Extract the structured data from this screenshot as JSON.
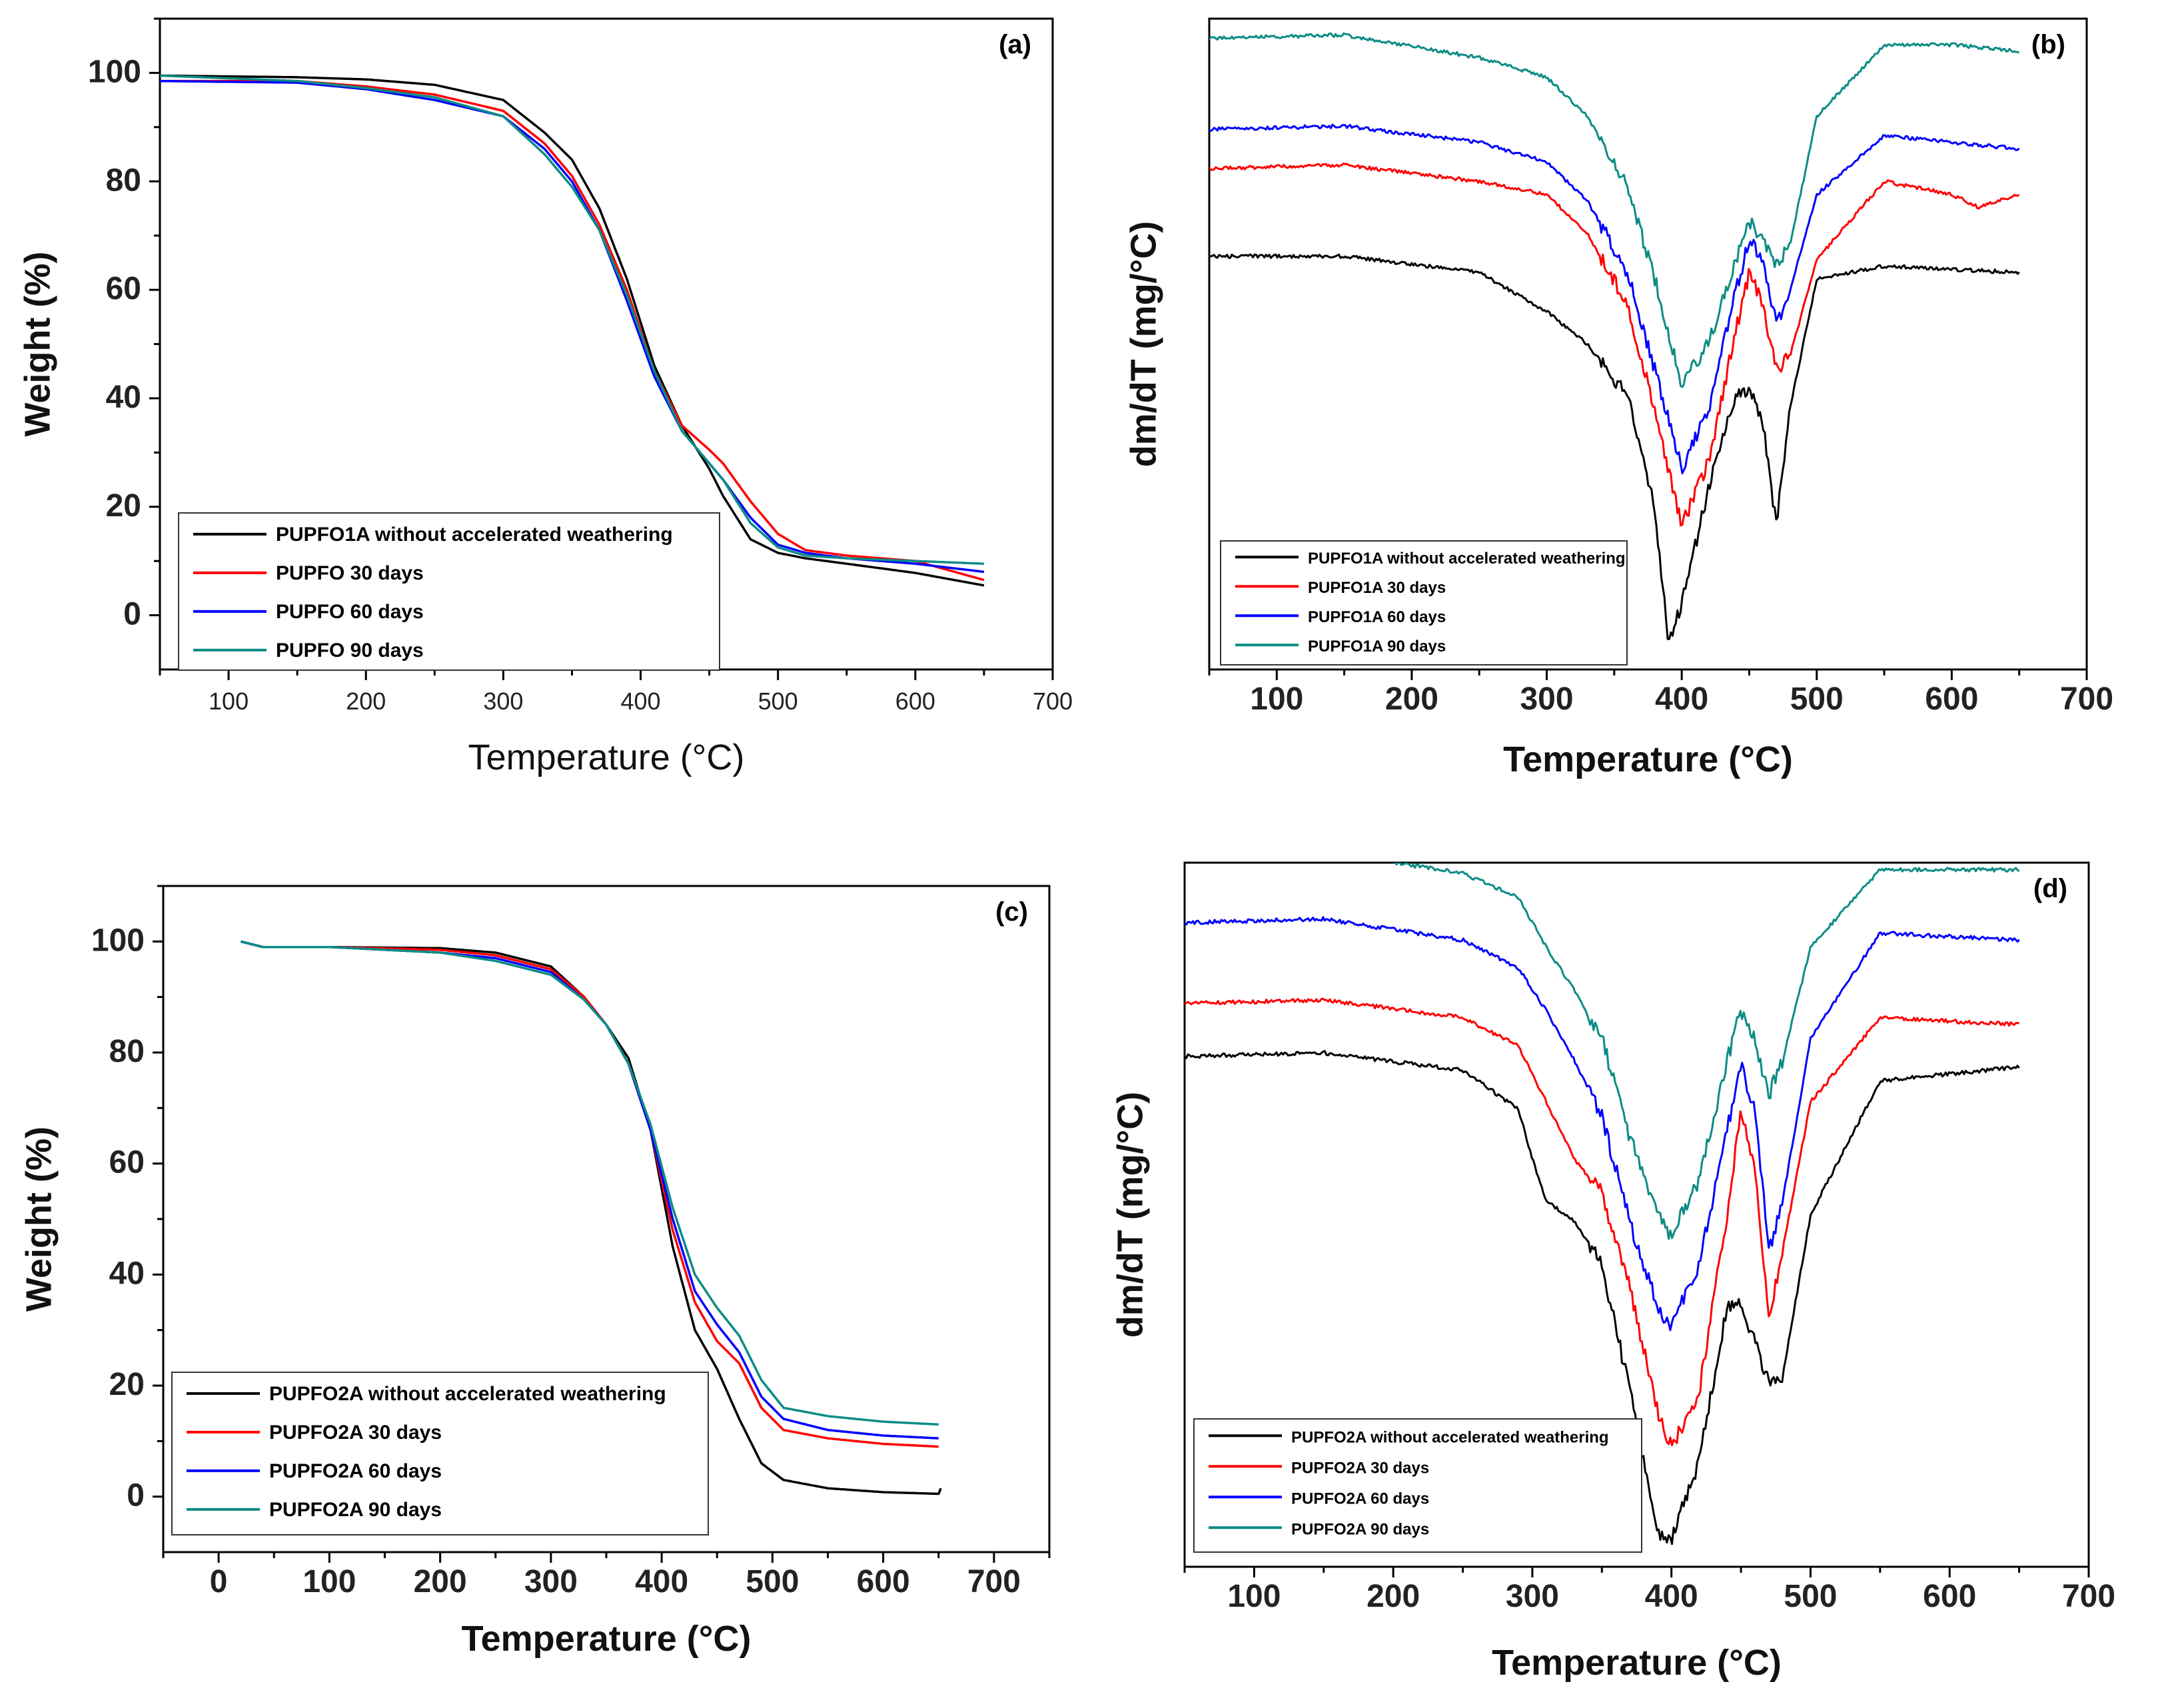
{
  "colors": {
    "black": "#000000",
    "red": "#ff0000",
    "blue": "#0000ff",
    "teal": "#0b8c85"
  },
  "chart_data": [
    {
      "type": "line",
      "panel_label": "(a)",
      "xlabel": "Temperature (°C)",
      "ylabel": "Weight (%)",
      "xlim": [
        50,
        700
      ],
      "ylim": [
        -10,
        110
      ],
      "xticks": [
        100,
        200,
        300,
        400,
        500,
        600,
        700
      ],
      "yticks": [
        0,
        20,
        40,
        60,
        80,
        100
      ],
      "grid": false,
      "legend_position": "bottom-left",
      "series": [
        {
          "name": "PUPFO1A without accelerated weathering",
          "color": "#000000",
          "x": [
            50,
            150,
            200,
            250,
            300,
            330,
            350,
            370,
            390,
            410,
            430,
            450,
            460,
            480,
            500,
            520,
            550,
            600,
            650
          ],
          "y": [
            99.5,
            99.2,
            98.8,
            97.8,
            95,
            89,
            84,
            75,
            62,
            46,
            35,
            27,
            22,
            14,
            11.5,
            10.5,
            9.5,
            7.8,
            5.5
          ]
        },
        {
          "name": "PUPFO 30 days",
          "color": "#ff0000",
          "x": [
            50,
            150,
            200,
            250,
            300,
            330,
            350,
            370,
            390,
            410,
            430,
            450,
            460,
            480,
            500,
            520,
            550,
            600,
            650
          ],
          "y": [
            98.5,
            98.5,
            97.5,
            96,
            93,
            87,
            81,
            72,
            60,
            45,
            35,
            30.5,
            28,
            21,
            15,
            12,
            11,
            10,
            6.5
          ]
        },
        {
          "name": "PUPFO 60 days",
          "color": "#0000ff",
          "x": [
            50,
            150,
            200,
            250,
            300,
            330,
            350,
            370,
            390,
            410,
            430,
            450,
            460,
            480,
            500,
            520,
            550,
            600,
            650
          ],
          "y": [
            98.5,
            98.2,
            97,
            95,
            92,
            86,
            80,
            71,
            58,
            44,
            34,
            28,
            25,
            18,
            13,
            11.5,
            10.5,
            9.5,
            8
          ]
        },
        {
          "name": "PUPFO 90 days",
          "color": "#0b8c85",
          "x": [
            50,
            150,
            200,
            250,
            300,
            330,
            350,
            370,
            390,
            410,
            430,
            450,
            460,
            480,
            500,
            520,
            550,
            600,
            650
          ],
          "y": [
            99.5,
            98.5,
            97.2,
            95.5,
            92,
            85,
            79,
            71,
            59,
            45,
            34,
            28,
            25,
            17,
            12.5,
            11,
            10.5,
            10,
            9.5
          ]
        }
      ]
    },
    {
      "type": "line",
      "panel_label": "(b)",
      "xlabel": "Temperature (°C)",
      "ylabel": "dm/dT (mg/°C)",
      "xlim": [
        50,
        700
      ],
      "ylim": [
        0,
        100
      ],
      "xticks": [
        100,
        200,
        300,
        400,
        500,
        600,
        700
      ],
      "grid": false,
      "legend_position": "bottom-left",
      "series": [
        {
          "name": "PUPFO1A without accelerated weathering",
          "color": "#000000",
          "x": [
            50,
            150,
            250,
            300,
            330,
            360,
            380,
            390,
            400,
            420,
            440,
            450,
            460,
            470,
            480,
            500,
            550,
            650
          ],
          "y": [
            63.5,
            63.5,
            61,
            55,
            50,
            42,
            25,
            4.5,
            10,
            28,
            42,
            43,
            38,
            22,
            40,
            60,
            62,
            61
          ]
        },
        {
          "name": "PUPFO1A 30 days",
          "color": "#ff0000",
          "x": [
            50,
            150,
            250,
            300,
            330,
            360,
            380,
            400,
            420,
            440,
            450,
            460,
            470,
            480,
            500,
            550,
            600,
            620,
            650
          ],
          "y": [
            77,
            77.5,
            75,
            73,
            67,
            56,
            40,
            22,
            32,
            52,
            61,
            56,
            46,
            48,
            63,
            75,
            73,
            71,
            73
          ]
        },
        {
          "name": "PUPFO1A 60 days",
          "color": "#0000ff",
          "x": [
            50,
            150,
            250,
            300,
            330,
            360,
            380,
            400,
            420,
            440,
            450,
            460,
            470,
            480,
            500,
            550,
            600,
            650
          ],
          "y": [
            83,
            83.5,
            81,
            78,
            72,
            61,
            46,
            31,
            40,
            58,
            66,
            63,
            53,
            58,
            73,
            82,
            81,
            80
          ]
        },
        {
          "name": "PUPFO1A 90 days",
          "color": "#0b8c85",
          "x": [
            50,
            150,
            250,
            300,
            330,
            360,
            380,
            400,
            420,
            440,
            450,
            460,
            470,
            480,
            500,
            550,
            600,
            650
          ],
          "y": [
            97,
            97.5,
            94,
            91,
            85,
            74,
            60,
            44,
            50,
            63,
            69,
            66,
            62,
            65,
            85,
            96,
            96,
            95
          ]
        }
      ]
    },
    {
      "type": "line",
      "panel_label": "(c)",
      "xlabel": "Temperature (°C)",
      "ylabel": "Weight (%)",
      "xlim": [
        -50,
        750
      ],
      "ylim": [
        -10,
        110
      ],
      "xticks": [
        0,
        100,
        200,
        300,
        400,
        500,
        600,
        700
      ],
      "yticks": [
        0,
        20,
        40,
        60,
        80,
        100
      ],
      "grid": false,
      "legend_position": "bottom-left",
      "series": [
        {
          "name": "PUPFO2A without accelerated weathering",
          "color": "#000000",
          "x": [
            20,
            40,
            100,
            200,
            250,
            300,
            330,
            350,
            370,
            390,
            410,
            430,
            450,
            470,
            490,
            510,
            550,
            600,
            650,
            652
          ],
          "y": [
            100,
            99,
            99,
            98.8,
            98,
            95.5,
            90,
            85,
            79,
            66,
            45,
            30,
            23,
            14,
            6,
            3,
            1.5,
            0.8,
            0.5,
            1.5
          ]
        },
        {
          "name": "PUPFO2A 30 days",
          "color": "#ff0000",
          "x": [
            20,
            40,
            100,
            200,
            250,
            300,
            330,
            350,
            370,
            390,
            410,
            430,
            450,
            470,
            490,
            510,
            550,
            600,
            650
          ],
          "y": [
            100,
            99,
            99,
            98.5,
            97.5,
            95,
            90,
            85,
            78,
            66,
            48,
            35,
            28,
            24,
            16,
            12,
            10.5,
            9.5,
            9
          ]
        },
        {
          "name": "PUPFO2A 60 days",
          "color": "#0000ff",
          "x": [
            20,
            40,
            100,
            200,
            250,
            300,
            330,
            350,
            370,
            390,
            410,
            430,
            450,
            470,
            490,
            510,
            550,
            600,
            650
          ],
          "y": [
            100,
            99,
            99,
            98,
            97,
            94.5,
            89.5,
            85,
            78,
            66,
            50,
            37,
            31,
            26,
            18,
            14,
            12,
            11,
            10.5
          ]
        },
        {
          "name": "PUPFO2A 90 days",
          "color": "#0b8c85",
          "x": [
            20,
            40,
            100,
            200,
            250,
            300,
            330,
            350,
            370,
            390,
            410,
            430,
            450,
            470,
            490,
            510,
            550,
            600,
            650
          ],
          "y": [
            100,
            99,
            99,
            98,
            96.5,
            94,
            89.5,
            85,
            78,
            67,
            52,
            40,
            34,
            29,
            21,
            16,
            14.5,
            13.5,
            13
          ]
        }
      ]
    },
    {
      "type": "line",
      "panel_label": "(d)",
      "xlabel": "Temperature (°C)",
      "ylabel": "dm/dT (mg/°C)",
      "xlim": [
        50,
        700
      ],
      "ylim": [
        0,
        100
      ],
      "xticks": [
        100,
        200,
        300,
        400,
        500,
        600,
        700
      ],
      "grid": false,
      "legend_position": "bottom-left",
      "series": [
        {
          "name": "PUPFO2A without accelerated weathering",
          "color": "#000000",
          "x": [
            50,
            150,
            250,
            290,
            300,
            310,
            330,
            350,
            370,
            390,
            400,
            420,
            440,
            450,
            460,
            470,
            480,
            500,
            550,
            650
          ],
          "y": [
            72.5,
            73,
            70.5,
            65,
            58,
            52,
            49,
            43,
            25,
            5,
            4,
            15,
            37,
            37,
            32,
            26,
            27,
            50,
            69,
            71
          ]
        },
        {
          "name": "PUPFO2A 30 days",
          "color": "#ff0000",
          "x": [
            50,
            150,
            250,
            290,
            310,
            330,
            350,
            370,
            390,
            400,
            420,
            440,
            450,
            460,
            470,
            480,
            500,
            550,
            650
          ],
          "y": [
            80,
            80.5,
            78,
            74,
            66,
            58,
            53,
            40,
            22,
            17,
            25,
            50,
            65,
            57,
            35,
            45,
            66,
            78,
            77
          ]
        },
        {
          "name": "PUPFO2A 60 days",
          "color": "#0000ff",
          "x": [
            50,
            150,
            250,
            290,
            310,
            330,
            350,
            370,
            390,
            400,
            420,
            440,
            450,
            460,
            470,
            480,
            500,
            550,
            650
          ],
          "y": [
            91.5,
            92,
            89,
            85,
            79,
            72,
            64,
            49,
            37,
            34,
            43,
            62,
            71,
            65,
            45,
            52,
            75,
            90,
            89
          ]
        },
        {
          "name": "PUPFO2A 90 days",
          "color": "#0b8c85",
          "x": [
            50,
            150,
            250,
            290,
            310,
            330,
            350,
            370,
            390,
            400,
            420,
            440,
            450,
            460,
            470,
            480,
            500,
            550,
            650
          ],
          "y": [
            101,
            101.5,
            98.5,
            95,
            88,
            82,
            75,
            61,
            50,
            47,
            55,
            72,
            79,
            75,
            67,
            72,
            88,
            99,
            99
          ]
        }
      ]
    }
  ]
}
